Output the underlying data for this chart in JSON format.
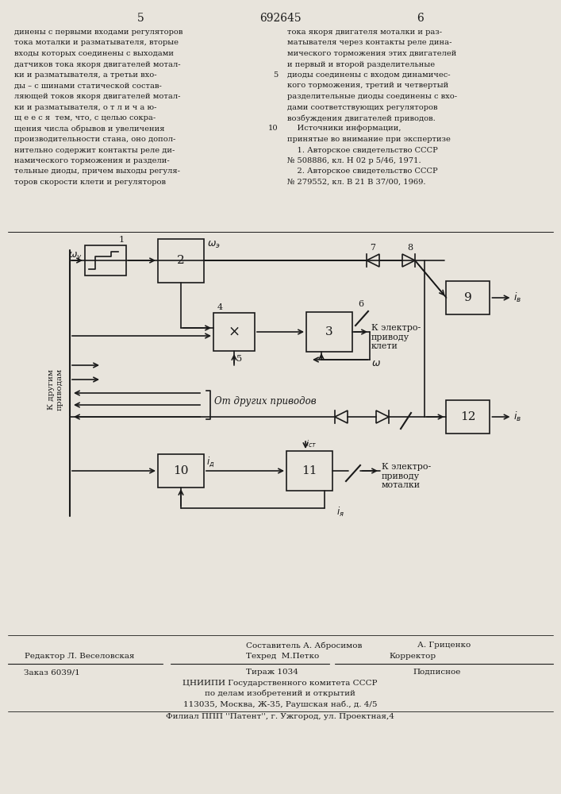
{
  "title_number": "692645",
  "page_left": "5",
  "page_right": "6",
  "bg_color": "#e8e4dc",
  "text_color": "#1a1a1a",
  "left_text": "динены с первыми входами регуляторов\nтока моталки и разматывателя, вторые\nвходы которых соединены с выходами\nдатчиков тока якоря двигателей мотал-\nки и разматывателя, а третьи вхо-\nды – с шинами статической состав-\nляющей токов якоря двигателей мотал-\nки и разматывателя, о т л и ч а ю-\nщ е е с я  тем, что, с целью сокра-\nщения числа обрывов и увеличения\nпроизводительности стана, оно допол-\nнительно содержит контакты реле ди-\nнамического торможения и раздели-\nтельные диоды, причем выходы регуля-\nторов скорости клети и регуляторов",
  "right_text": "тока якоря двигателя моталки и раз-\nматывателя через контакты реле дина-\nмического торможения этих двигателей\nи первый и второй разделительные\nдиоды соединены с входом динамичес-\nкого торможения, третий и четвертый\nразделительные диоды соединены с вхо-\nдами соответствующих регуляторов\nвозбуждения двигателей приводов.\n    Источники информации,\nпринятые во внимание при экспертизе\n    1. Авторское свидетельство СССР\n№ 508886, кл. Н 02 р 5/46, 1971.\n    2. Авторское свидетельство СССР\n№ 279552, кл. В 21 В 37/00, 1969.",
  "bottom_text1": "Составитель А. Абросимов",
  "bottom_text2": "А. Гриценко",
  "bottom_text3": "Редактор Л. Веселовская",
  "bottom_text4": "Техред  М.Петко",
  "bottom_text5": "Корректор",
  "bottom_text6": "Заказ 6039/1",
  "bottom_text7": "Тираж 1034",
  "bottom_text8": "Подписное",
  "bottom_text9": "ЦНИИПИ Государственного комитета СССР",
  "bottom_text10": "по делам изобретений и открытий",
  "bottom_text11": "113035, Москва, Ж-35, Раушская наб., д. 4/5",
  "bottom_text12": "Филиал ППП ''Патент'', г. Ужгород, ул. Проектная,4"
}
